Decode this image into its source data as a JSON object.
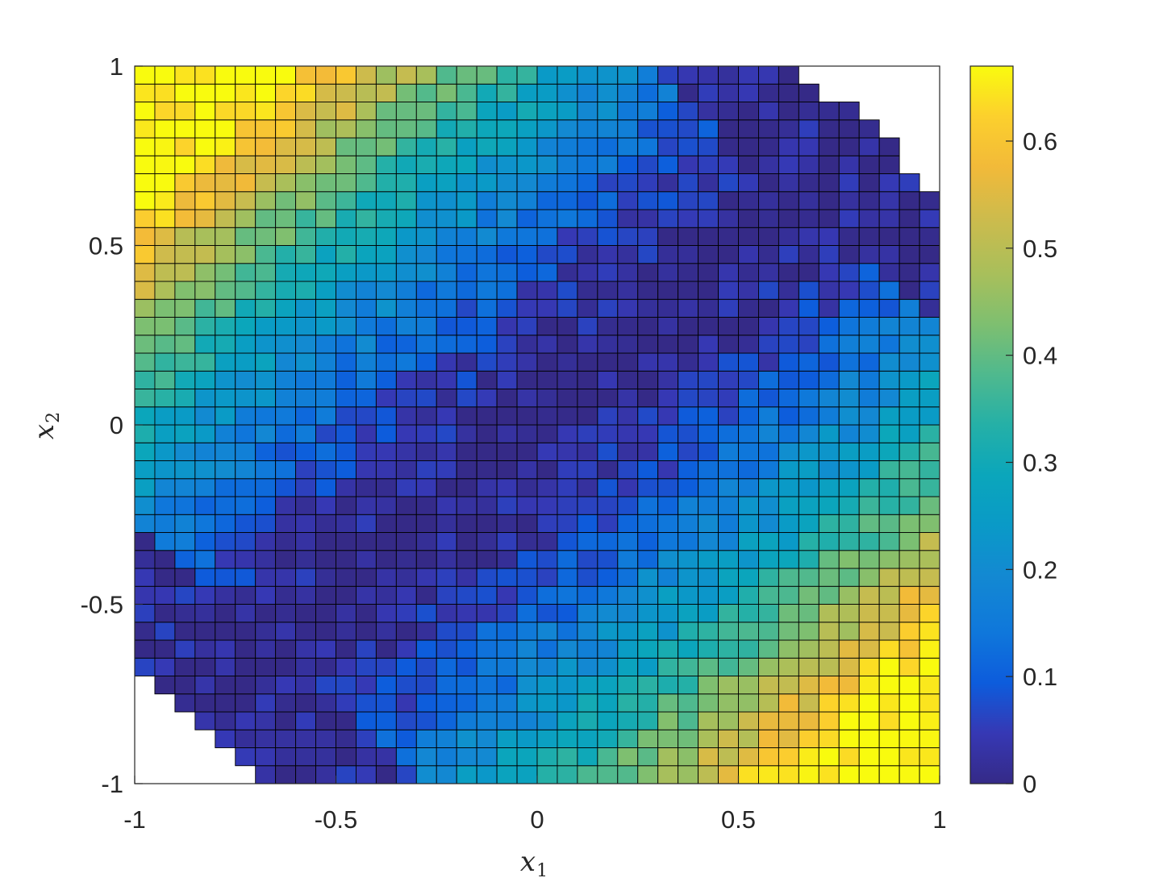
{
  "chart_data": {
    "type": "heatmap",
    "title": "",
    "xlabel_main": "x",
    "xlabel_sub": "1",
    "ylabel_main": "x",
    "ylabel_sub": "2",
    "xlim": [
      -1,
      1
    ],
    "ylim": [
      -1,
      1
    ],
    "xticks": [
      -1,
      -0.5,
      0,
      0.5,
      1
    ],
    "yticks": [
      -1,
      -0.5,
      0,
      0.5,
      1
    ],
    "xtick_labels": [
      "-1",
      "-0.5",
      "0",
      "0.5",
      "1"
    ],
    "ytick_labels": [
      "-1",
      "-0.5",
      "0",
      "0.5",
      "1"
    ],
    "grid_cells": 40,
    "colorbar": {
      "min": 0,
      "max": 0.67,
      "ticks": [
        0,
        0.1,
        0.2,
        0.3,
        0.4,
        0.5,
        0.6
      ],
      "tick_labels": [
        "0",
        "0.1",
        "0.2",
        "0.3",
        "0.4",
        "0.5",
        "0.6"
      ],
      "colormap": "parula"
    },
    "field": {
      "description_kind": "value = 0.67 * clamp(((x - y)^2 / 2.6)^0.8, 0, 1); cells with |x + y| > 1.65 are empty",
      "empty_threshold": 1.65
    },
    "colors": {
      "grid_line": "#000000",
      "axes_box": "#262626"
    }
  }
}
